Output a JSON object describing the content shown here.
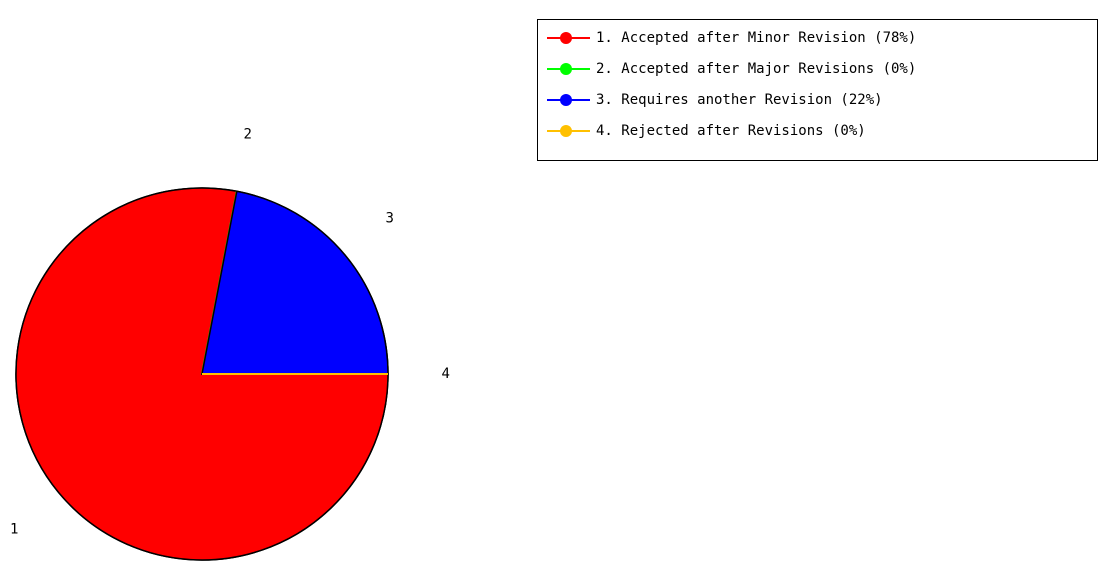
{
  "chart_data": {
    "type": "pie",
    "categories": [
      "1. Accepted after Minor Revision (78%)",
      "2. Accepted after Major Revisions (0%)",
      "3. Requires another Revision (22%)",
      "4. Rejected after Revisions (0%)"
    ],
    "labels": [
      "1",
      "2",
      "3",
      "4"
    ],
    "values": [
      78,
      0,
      22,
      0
    ],
    "colors": [
      "#ff0000",
      "#00ff00",
      "#0000ff",
      "#ffc000"
    ],
    "legend": "top-right"
  }
}
